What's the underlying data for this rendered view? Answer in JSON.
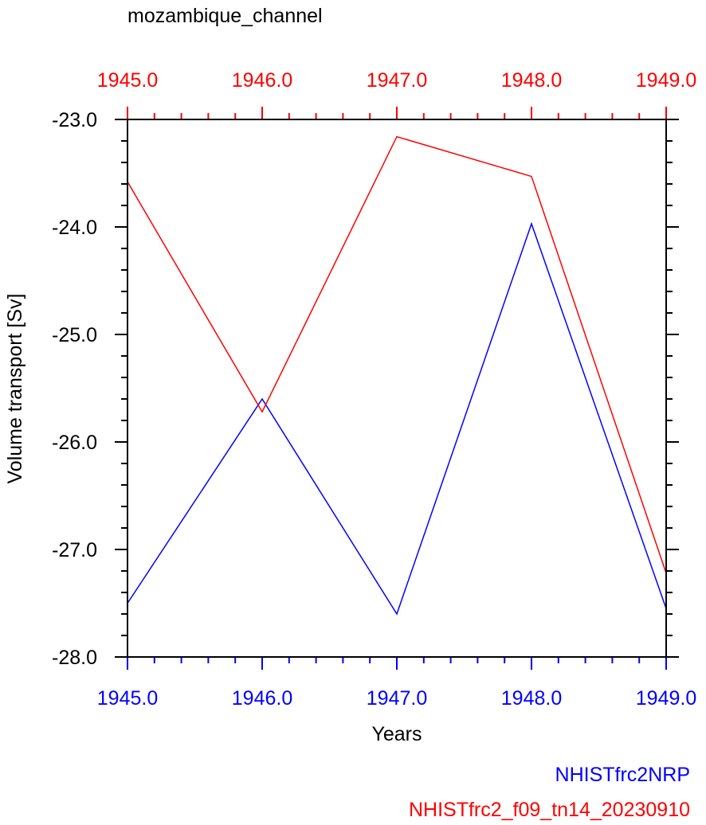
{
  "chart_data": {
    "type": "line",
    "title": "mozambique_channel",
    "xlabel": "Years",
    "ylabel": "Volume transport [Sv]",
    "xlim": [
      1945.0,
      1949.0
    ],
    "ylim": [
      -28.0,
      -23.0
    ],
    "x_ticks": [
      1945.0,
      1946.0,
      1947.0,
      1948.0,
      1949.0
    ],
    "x_tick_labels": [
      "1945.0",
      "1946.0",
      "1947.0",
      "1948.0",
      "1949.0"
    ],
    "y_ticks": [
      -23.0,
      -24.0,
      -25.0,
      -26.0,
      -27.0,
      -28.0
    ],
    "y_tick_labels": [
      "-23.0",
      "-24.0",
      "-25.0",
      "-26.0",
      "-27.0",
      "-28.0"
    ],
    "x_minor_per_major": 5,
    "y_minor_per_major": 5,
    "grid": false,
    "bottom_axis_color": "#0000ff",
    "top_axis_color": "#ff0000",
    "x": [
      1945.0,
      1946.0,
      1947.0,
      1948.0,
      1949.0
    ],
    "series": [
      {
        "name": "NHISTfrc2NRP",
        "color": "#0000ff",
        "values": [
          -27.5,
          -25.6,
          -27.6,
          -23.97,
          -27.55
        ]
      },
      {
        "name": "NHISTfrc2_f09_tn14_20230910",
        "color": "#ff0000",
        "values": [
          -23.58,
          -25.72,
          -23.16,
          -23.53,
          -27.22
        ]
      }
    ],
    "legend_placement": "bottom-right"
  }
}
